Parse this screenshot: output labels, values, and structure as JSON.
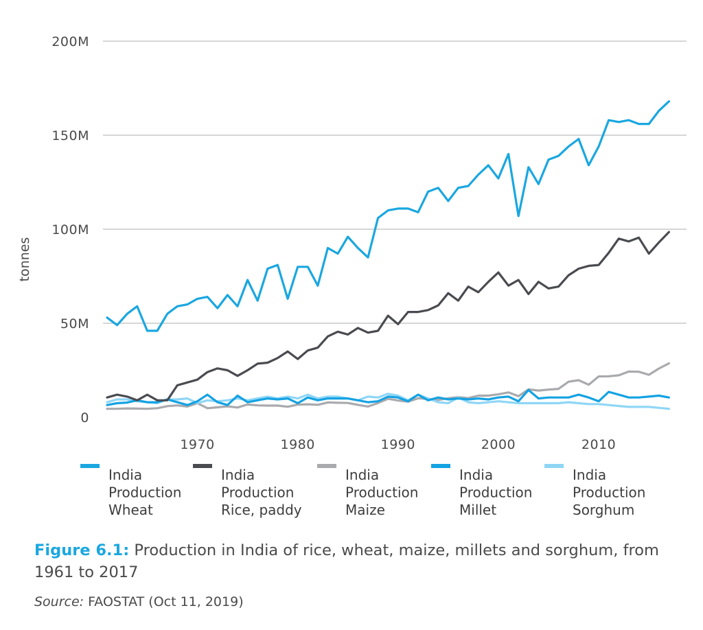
{
  "chart_data": {
    "type": "line",
    "ylabel": "tonnes",
    "ylim": [
      0,
      200000000
    ],
    "yticks": [
      {
        "value": 0,
        "label": "0"
      },
      {
        "value": 50000000,
        "label": "50M"
      },
      {
        "value": 100000000,
        "label": "100M"
      },
      {
        "value": 150000000,
        "label": "150M"
      },
      {
        "value": 200000000,
        "label": "200M"
      }
    ],
    "xlim": [
      1961,
      2018
    ],
    "xticks": [
      1970,
      1980,
      1990,
      2000,
      2010
    ],
    "grid": "horizontal",
    "legend_position": "bottom",
    "x": [
      1961,
      1962,
      1963,
      1964,
      1965,
      1966,
      1967,
      1968,
      1969,
      1970,
      1971,
      1972,
      1973,
      1974,
      1975,
      1976,
      1977,
      1978,
      1979,
      1980,
      1981,
      1982,
      1983,
      1984,
      1985,
      1986,
      1987,
      1988,
      1989,
      1990,
      1991,
      1992,
      1993,
      1994,
      1995,
      1996,
      1997,
      1998,
      1999,
      2000,
      2001,
      2002,
      2003,
      2004,
      2005,
      2006,
      2007,
      2008,
      2009,
      2010,
      2011,
      2012,
      2013,
      2014,
      2015,
      2016,
      2017,
      2018
    ],
    "series": [
      {
        "name": [
          "India",
          "Production",
          "Wheat"
        ],
        "color": "#1aa7e0",
        "values": [
          53,
          49,
          55,
          59,
          46,
          46,
          55,
          59,
          60,
          63,
          64,
          58,
          65,
          59,
          73,
          62,
          79,
          81,
          63,
          80,
          80,
          70,
          90,
          87,
          96,
          90,
          85,
          106,
          110,
          111,
          111,
          109,
          120,
          122,
          115,
          122,
          123,
          129,
          134,
          127,
          140,
          107,
          133,
          124,
          137,
          139,
          144,
          148,
          134,
          144,
          158,
          157,
          158,
          156,
          156,
          163,
          168,
          null
        ]
      },
      {
        "name": [
          "India",
          "Production",
          "Rice, paddy"
        ],
        "color": "#4a4b50",
        "values": [
          10.5,
          12,
          11,
          9,
          12,
          9,
          9,
          17,
          18.5,
          20,
          24,
          26,
          25,
          22,
          25,
          28.5,
          29,
          31.5,
          35,
          31,
          35.5,
          37,
          43,
          45.5,
          44,
          47.5,
          45,
          46,
          54,
          49.5,
          56,
          56,
          57,
          59.5,
          66,
          62,
          69.5,
          66.5,
          72,
          77,
          70,
          73,
          65.5,
          72,
          68.5,
          69.5,
          75.5,
          79,
          80.5,
          81,
          87.5,
          95,
          93.5,
          95.5,
          87,
          93,
          98.5,
          null
        ]
      },
      {
        "name": [
          "India",
          "Production",
          "Maize"
        ],
        "color": "#a9aaad",
        "values": [
          4.5,
          4.5,
          4.7,
          4.6,
          4.5,
          4.8,
          5.9,
          6.3,
          5.7,
          7.5,
          4.8,
          5.3,
          5.8,
          5.2,
          6.8,
          6.3,
          6.2,
          6.2,
          5.6,
          6.7,
          6.9,
          6.6,
          7.9,
          7.7,
          7.6,
          6.6,
          5.7,
          7.6,
          9.8,
          8.9,
          8.3,
          10.1,
          9.7,
          9.2,
          10.1,
          10.7,
          10.2,
          11.5,
          11.5,
          12.2,
          13.2,
          11.2,
          14.8,
          14.2,
          14.7,
          15.1,
          18.9,
          19.7,
          17.3,
          21.7,
          21.8,
          22.3,
          24.3,
          24.2,
          22.6,
          25.9,
          28.7,
          null
        ]
      },
      {
        "name": [
          "India",
          "Production",
          "Millet"
        ],
        "color": "#14a2e3",
        "values": [
          6.5,
          7.5,
          7.8,
          9,
          8,
          8,
          9.5,
          8,
          6.5,
          8.5,
          12,
          8,
          6.5,
          11.5,
          8,
          9,
          10,
          9.5,
          10,
          7.5,
          10.5,
          9,
          10,
          10,
          10,
          9,
          8,
          8.5,
          11,
          10.5,
          8.5,
          12,
          9,
          10.5,
          9.5,
          10,
          9.5,
          10,
          9.5,
          10.5,
          11,
          8.5,
          14.5,
          10,
          10.5,
          10.5,
          10.5,
          12,
          10.5,
          8.5,
          13.5,
          12,
          10.5,
          10.5,
          11,
          11.5,
          10.5,
          null
        ]
      },
      {
        "name": [
          "India",
          "Production",
          "Sorghum"
        ],
        "color": "#8fd6f6",
        "values": [
          8,
          9.5,
          9.5,
          8.5,
          8,
          7.5,
          9.5,
          9.5,
          10,
          7.5,
          9,
          8.5,
          9,
          10,
          9,
          10,
          11,
          10,
          11,
          10,
          12,
          10,
          11,
          11,
          10,
          9,
          11,
          10.5,
          12.5,
          11.5,
          9,
          12,
          10,
          8,
          7.5,
          10.5,
          8,
          7.5,
          8,
          8.5,
          8,
          7.5,
          7.5,
          7.5,
          7.5,
          7.5,
          8,
          7.5,
          7,
          7,
          6.5,
          6,
          5.5,
          5.5,
          5.5,
          5,
          4.5,
          null
        ]
      }
    ]
  },
  "caption": {
    "figure_label": "Figure 6.1:",
    "text": " Production in India of rice, wheat, maize, millets and sorghum, from 1961 to 2017"
  },
  "source": {
    "label": "Source:",
    "text": " FAOSTAT (Oct 11, 2019)"
  }
}
